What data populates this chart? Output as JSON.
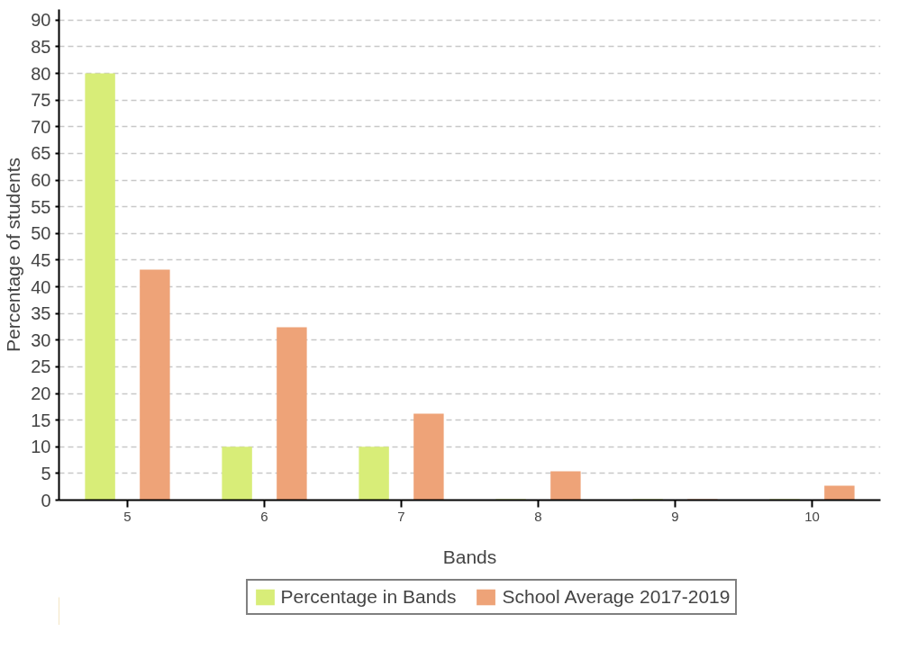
{
  "chart_data": {
    "type": "bar",
    "xlabel": "Bands",
    "ylabel": "Percentage of students",
    "categories": [
      "5",
      "6",
      "7",
      "8",
      "9",
      "10"
    ],
    "series": [
      {
        "name": "Percentage in Bands",
        "color": "#d8ed78",
        "values": [
          80,
          10,
          10,
          0,
          0,
          0
        ]
      },
      {
        "name": "School Average 2017-2019",
        "color": "#eea378",
        "values": [
          43.2,
          32.4,
          16.2,
          5.4,
          0,
          2.7
        ]
      }
    ],
    "ylim": [
      0,
      92
    ],
    "yticks": [
      0,
      5,
      10,
      15,
      20,
      25,
      30,
      35,
      40,
      45,
      50,
      55,
      60,
      65,
      70,
      75,
      80,
      85,
      90
    ],
    "grid": "y",
    "legend": "bottom"
  }
}
